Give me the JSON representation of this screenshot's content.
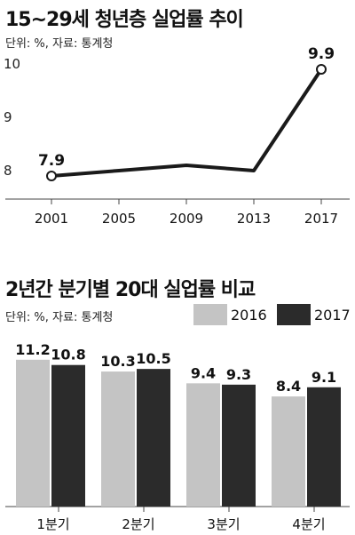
{
  "chart_data": [
    {
      "type": "line",
      "title": "15~29세 청년층 실업률 추이",
      "source": "단위: %, 자료: 통계청",
      "x": [
        2001,
        2005,
        2009,
        2013,
        2017
      ],
      "series": [
        {
          "values": [
            7.9,
            8.0,
            8.1,
            8.0,
            9.9
          ]
        }
      ],
      "data_labels": [
        "7.9",
        "9.9"
      ],
      "y_ticks": [
        "10",
        "9",
        "8"
      ],
      "ylim": [
        7.5,
        10.4
      ],
      "grid": false,
      "colors": {
        "line": "#1a1a1a",
        "marker_fill": "#ffffff"
      }
    },
    {
      "type": "bar",
      "title": "2년간 분기별 20대 실업률 비교",
      "source": "단위: %, 자료: 통계청",
      "categories": [
        "1분기",
        "2분기",
        "3분기",
        "4분기"
      ],
      "series": [
        {
          "name": "2016",
          "values": [
            11.2,
            10.3,
            9.4,
            8.4
          ],
          "color": "#c4c4c4"
        },
        {
          "name": "2017",
          "values": [
            10.8,
            10.5,
            9.3,
            9.1
          ],
          "color": "#2b2b2b"
        }
      ],
      "value_labels": [
        [
          "11.2",
          "10.3",
          "9.4",
          "8.4"
        ],
        [
          "10.8",
          "10.5",
          "9.3",
          "9.1"
        ]
      ],
      "legend": "top-right",
      "grid": false
    }
  ]
}
